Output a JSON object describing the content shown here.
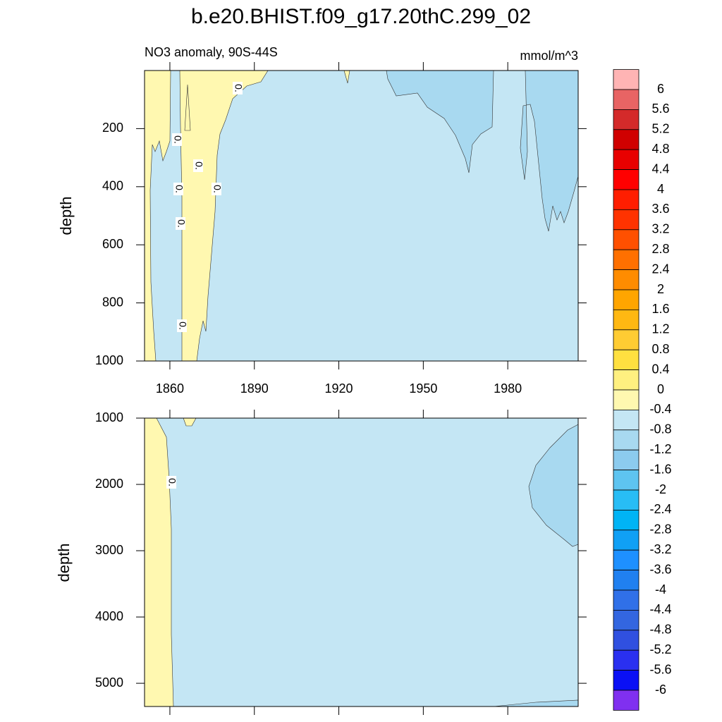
{
  "title": "b.e20.BHIST.f09_g17.20thC.299_02",
  "chart_data": [
    {
      "type": "contour",
      "title_left": "NO3 anomaly, 90S-44S",
      "title_right": "mmol/m^3",
      "y_label": "depth",
      "xlim": [
        1851,
        2005
      ],
      "xticks": [
        1860,
        1890,
        1920,
        1950,
        1980
      ],
      "xtick_labels": true,
      "ylim": [
        0,
        1000
      ],
      "y_reversed": true,
      "yticks": [
        200,
        400,
        600,
        800,
        1000
      ],
      "contour_labels": [
        "0.",
        "0.",
        "0.",
        "0.",
        "0.",
        "0.",
        "0."
      ]
    },
    {
      "type": "contour",
      "y_label": "depth",
      "xlim": [
        1851,
        2005
      ],
      "xticks": [
        1860,
        1890,
        1920,
        1950,
        1980
      ],
      "xtick_labels": false,
      "ylim": [
        1000,
        5350
      ],
      "y_reversed": true,
      "yticks": [
        1000,
        2000,
        3000,
        4000,
        5000
      ],
      "contour_labels": [
        "0."
      ]
    },
    {
      "type": "colorbar",
      "levels": [
        6,
        5.6,
        5.2,
        4.8,
        4.4,
        4,
        3.6,
        3.2,
        2.8,
        2.4,
        2,
        1.6,
        1.2,
        0.8,
        0.4,
        0,
        -0.4,
        -0.8,
        -1.2,
        -1.6,
        -2,
        -2.4,
        -2.8,
        -3.2,
        -3.6,
        -4,
        -4.4,
        -4.8,
        -5.2,
        -5.6,
        -6
      ],
      "colors": [
        "#ffb4b4",
        "#e86464",
        "#d42a2a",
        "#d00000",
        "#e80000",
        "#ff0000",
        "#ff1e00",
        "#ff3300",
        "#ff5000",
        "#ff7000",
        "#ff8c00",
        "#ffa500",
        "#ffb812",
        "#ffcc33",
        "#ffe040",
        "#fff080",
        "#fff8b0",
        "#c4e6f4",
        "#a8d9f0",
        "#8ccbee",
        "#5ec4f0",
        "#28bdf5",
        "#00b4f5",
        "#10a0f5",
        "#1e90ff",
        "#2080f0",
        "#3070e8",
        "#3366e0",
        "#3050e0",
        "#2a30f0",
        "#0a10f5",
        "#8030f0"
      ]
    }
  ]
}
